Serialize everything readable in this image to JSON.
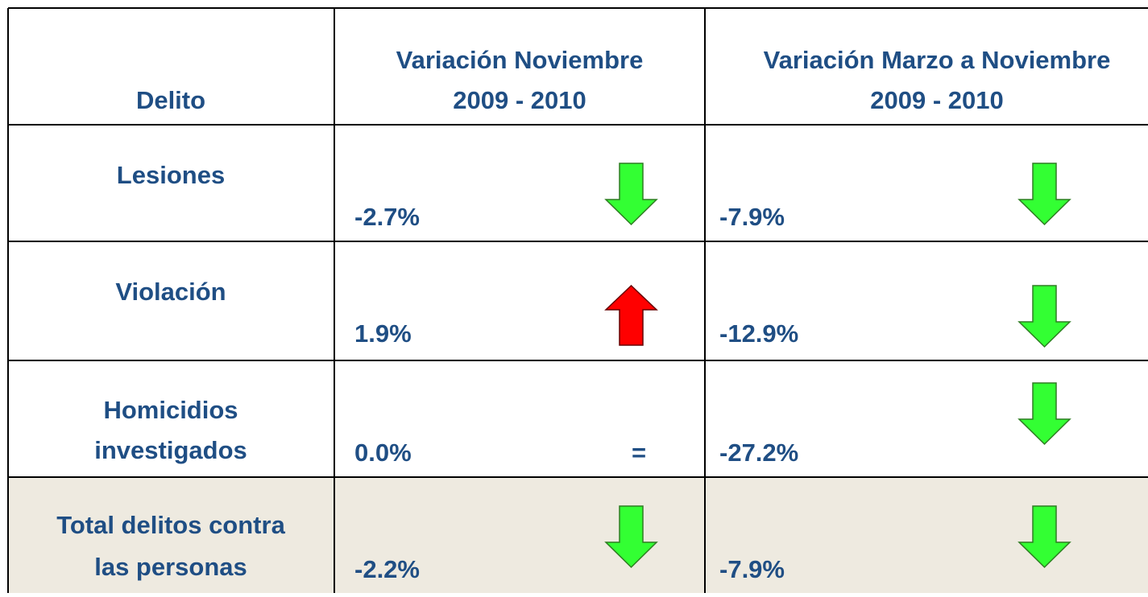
{
  "header": {
    "crime": "Delito",
    "november": [
      "Variación Noviembre",
      "2009 - 2010"
    ],
    "march_to_november": [
      "Variación Marzo a Noviembre",
      "2009 - 2010"
    ]
  },
  "rows": [
    {
      "label": [
        "Lesiones"
      ],
      "november": "-2.7%",
      "march_to_november": "-7.9%"
    },
    {
      "label": [
        "Violación"
      ],
      "november": "1.9%",
      "march_to_november": "-12.9%"
    },
    {
      "label": [
        "Homicidios",
        "investigados"
      ],
      "november": "0.0%",
      "november_mark": "=",
      "march_to_november": "-27.2%"
    },
    {
      "label": [
        "Total delitos contra",
        "las personas"
      ],
      "november": "-2.2%",
      "march_to_november": "-7.9%"
    }
  ]
}
